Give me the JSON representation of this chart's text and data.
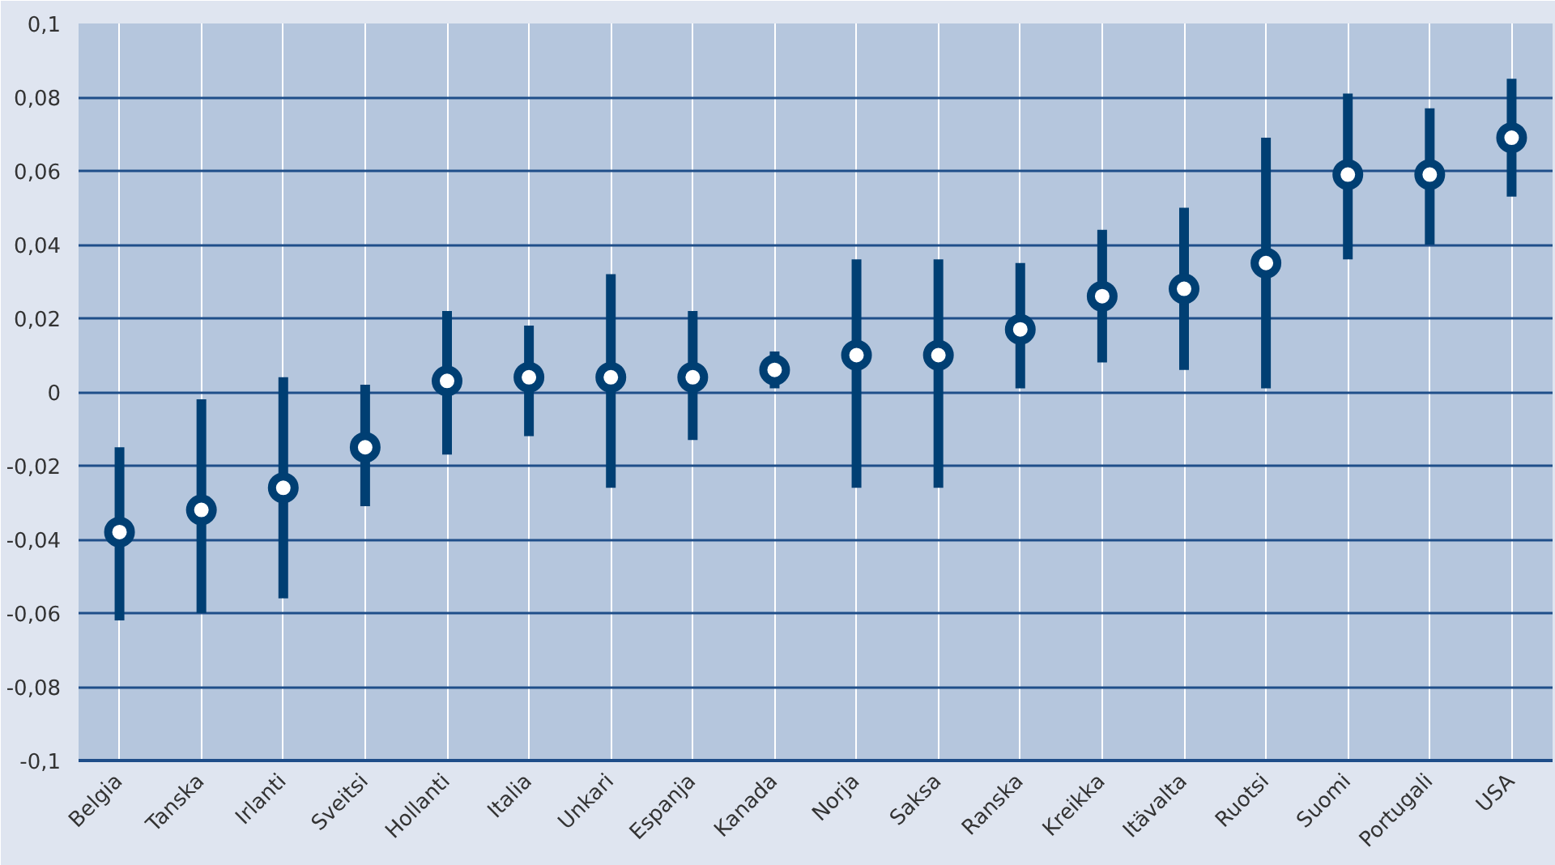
{
  "chart_data": {
    "type": "scatter",
    "categories": [
      "Belgia",
      "Tanska",
      "Irlanti",
      "Sveitsi",
      "Hollanti",
      "Italia",
      "Unkari",
      "Espanja",
      "Kanada",
      "Norja",
      "Saksa",
      "Ranska",
      "Kreikka",
      "Itävalta",
      "Ruotsi",
      "Suomi",
      "Portugali",
      "USA"
    ],
    "values": [
      -0.038,
      -0.032,
      -0.026,
      -0.015,
      0.003,
      0.004,
      0.004,
      0.004,
      0.006,
      0.01,
      0.01,
      0.017,
      0.026,
      0.028,
      0.035,
      0.059,
      0.059,
      0.069
    ],
    "errors": [
      [
        -0.062,
        -0.015
      ],
      [
        -0.06,
        -0.002
      ],
      [
        -0.056,
        0.004
      ],
      [
        -0.031,
        0.002
      ],
      [
        -0.017,
        0.022
      ],
      [
        -0.012,
        0.018
      ],
      [
        -0.026,
        0.032
      ],
      [
        -0.013,
        0.022
      ],
      [
        0.001,
        0.011
      ],
      [
        -0.026,
        0.036
      ],
      [
        -0.026,
        0.036
      ],
      [
        0.001,
        0.035
      ],
      [
        0.008,
        0.044
      ],
      [
        0.006,
        0.05
      ],
      [
        0.001,
        0.069
      ],
      [
        0.036,
        0.081
      ],
      [
        0.04,
        0.077
      ],
      [
        0.053,
        0.085
      ]
    ],
    "color": "#003f73",
    "marker": "circle",
    "ylim": [
      -0.1,
      0.1
    ],
    "yticks": [
      {
        "value": -0.1,
        "label": "-0,1"
      },
      {
        "value": -0.08,
        "label": "-0,08"
      },
      {
        "value": -0.06,
        "label": "-0,06"
      },
      {
        "value": -0.04,
        "label": "-0,04"
      },
      {
        "value": -0.02,
        "label": "-0,02"
      },
      {
        "value": 0,
        "label": "0"
      },
      {
        "value": 0.02,
        "label": "0,02"
      },
      {
        "value": 0.04,
        "label": "0,04"
      },
      {
        "value": 0.06,
        "label": "0,06"
      },
      {
        "value": 0.08,
        "label": "0,08"
      },
      {
        "value": 0.1,
        "label": "0,1"
      }
    ],
    "grid": true
  }
}
